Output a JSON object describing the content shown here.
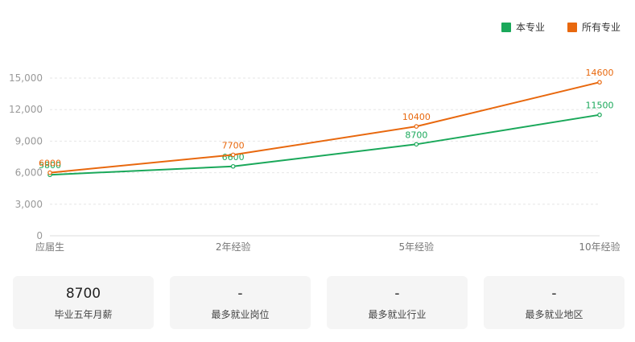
{
  "chart_data": {
    "type": "line",
    "categories": [
      "应届生",
      "2年经验",
      "5年经验",
      "10年经验"
    ],
    "series": [
      {
        "name": "本专业",
        "values": [
          5800,
          6600,
          8700,
          11500
        ],
        "color": "#1aa85a"
      },
      {
        "name": "所有专业",
        "values": [
          6000,
          7700,
          10400,
          14600
        ],
        "color": "#e8680e"
      }
    ],
    "ylim": [
      0,
      15000
    ],
    "yticks": [
      0,
      3000,
      6000,
      9000,
      12000,
      15000
    ],
    "ytick_labels": [
      "0",
      "3,000",
      "6,000",
      "9,000",
      "12,000",
      "15,000"
    ],
    "grid": true,
    "legend_position": "top-right",
    "data_labels": true
  },
  "legend": {
    "items": [
      {
        "label": "本专业",
        "color": "#1aa85a"
      },
      {
        "label": "所有专业",
        "color": "#e8680e"
      }
    ]
  },
  "cards": [
    {
      "value": "8700",
      "label": "毕业五年月薪"
    },
    {
      "value": "-",
      "label": "最多就业岗位"
    },
    {
      "value": "-",
      "label": "最多就业行业"
    },
    {
      "value": "-",
      "label": "最多就业地区"
    }
  ]
}
